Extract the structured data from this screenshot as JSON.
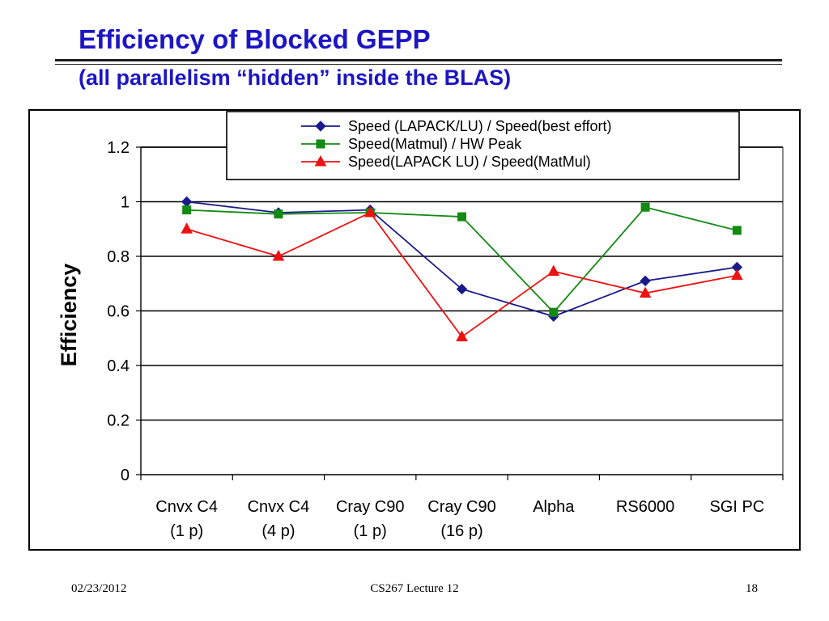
{
  "slide": {
    "title": "Efficiency of Blocked GEPP",
    "subtitle": "(all parallelism “hidden” inside the BLAS)"
  },
  "footer": {
    "date": "02/23/2012",
    "center": "CS267 Lecture 12",
    "page": "18"
  },
  "chart_data": {
    "type": "line",
    "title": "",
    "xlabel": "",
    "ylabel": "Efficiency",
    "ylim": [
      0,
      1.2
    ],
    "yticks": [
      "0",
      "0.2",
      "0.4",
      "0.6",
      "0.8",
      "1",
      "1.2"
    ],
    "grid": true,
    "legend_position": "top-right",
    "categories": [
      [
        "Cnvx C4",
        "(1 p)"
      ],
      [
        "Cnvx C4",
        "(4 p)"
      ],
      [
        "Cray C90",
        "(1 p)"
      ],
      [
        "Cray C90",
        "(16 p)"
      ],
      [
        "Alpha"
      ],
      [
        "RS6000"
      ],
      [
        "SGI PC"
      ]
    ],
    "series": [
      {
        "name": "Speed (LAPACK/LU) / Speed(best effort)",
        "color": "#1a1a8c",
        "marker": "diamond",
        "values": [
          1.0,
          0.96,
          0.97,
          0.68,
          0.58,
          0.71,
          0.76
        ]
      },
      {
        "name": "Speed(Matmul) / HW Peak",
        "color": "#138a13",
        "marker": "square",
        "values": [
          0.97,
          0.955,
          0.96,
          0.945,
          0.595,
          0.98,
          0.895
        ]
      },
      {
        "name": "Speed(LAPACK LU) / Speed(MatMul)",
        "color": "#ee1111",
        "marker": "triangle",
        "values": [
          0.9,
          0.8,
          0.96,
          0.505,
          0.745,
          0.665,
          0.73
        ]
      }
    ]
  }
}
